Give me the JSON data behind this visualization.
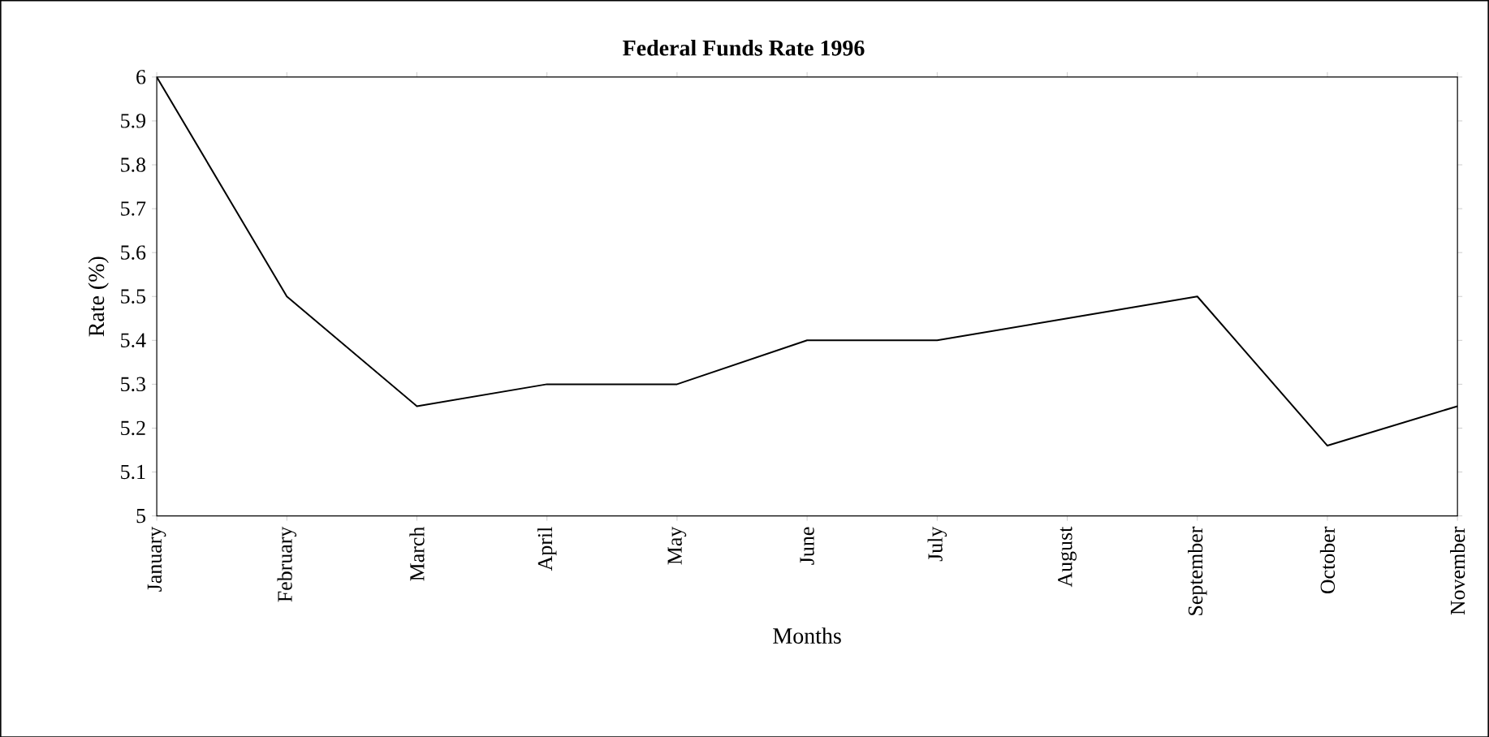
{
  "chart_data": {
    "type": "line",
    "title": "Federal Funds Rate 1996",
    "xlabel": "Months",
    "ylabel": "Rate (%)",
    "categories": [
      "January",
      "February",
      "March",
      "April",
      "May",
      "June",
      "July",
      "August",
      "September",
      "October",
      "November"
    ],
    "series": [
      {
        "color": "#000000",
        "values": [
          6.0,
          5.5,
          5.25,
          5.3,
          5.3,
          5.4,
          5.4,
          5.45,
          5.5,
          5.16,
          5.25
        ]
      }
    ],
    "ylim": [
      5,
      6
    ],
    "yticks": [
      5,
      5.1,
      5.2,
      5.3,
      5.4,
      5.5,
      5.6,
      5.7,
      5.8,
      5.9,
      6
    ],
    "grid": false,
    "marker": "none",
    "line_style": "solid"
  }
}
